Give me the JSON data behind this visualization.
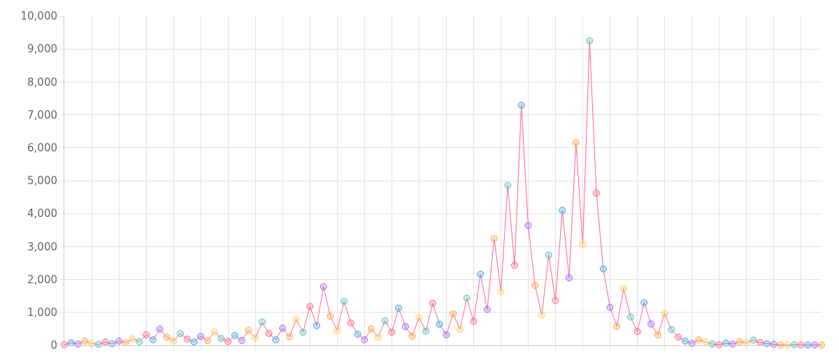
{
  "chart_data": {
    "type": "line",
    "categories": [
      null,
      null,
      null,
      null,
      null,
      null,
      null,
      null,
      null,
      null,
      null,
      null,
      null,
      null,
      null,
      null,
      null,
      null,
      null,
      null,
      null,
      null,
      null,
      null,
      null,
      null,
      null,
      null,
      null,
      null,
      null,
      null,
      null,
      null,
      null,
      null,
      null,
      null,
      null,
      null,
      null,
      null,
      null,
      null,
      null,
      null,
      null,
      null,
      null,
      null,
      null,
      null,
      null,
      null,
      null,
      null,
      null,
      null,
      null,
      null,
      null,
      null,
      null,
      null,
      null,
      null,
      null,
      null,
      null,
      null,
      null,
      null,
      null,
      null,
      null,
      null,
      null,
      null,
      null,
      null,
      null,
      null,
      null,
      null,
      null,
      null,
      null,
      null,
      null,
      null,
      null,
      null,
      null,
      null,
      null,
      null,
      null,
      null,
      null,
      null,
      null,
      null,
      null,
      null,
      null,
      null,
      null,
      null,
      null,
      null,
      null,
      null
    ],
    "series": [
      {
        "color": "#ff6384",
        "values": [
          20,
          80,
          40,
          130,
          60,
          30,
          100,
          50,
          130,
          80,
          200,
          110,
          320,
          170,
          490,
          250,
          130,
          360,
          190,
          100,
          270,
          150,
          410,
          210,
          120,
          300,
          150,
          460,
          230,
          710,
          360,
          170,
          520,
          260,
          790,
          400,
          1180,
          600,
          1780,
          880,
          450,
          1340,
          680,
          340,
          170,
          500,
          250,
          750,
          400,
          1130,
          570,
          280,
          840,
          430,
          1280,
          640,
          320,
          960,
          480,
          1430,
          730,
          2160,
          1090,
          3240,
          1630,
          4860,
          2430,
          7290,
          3640,
          1820,
          920,
          2740,
          1360,
          4100,
          2050,
          6150,
          3070,
          9250,
          4620,
          2320,
          1150,
          580,
          1720,
          860,
          420,
          1300,
          650,
          320,
          970,
          480,
          250,
          130,
          60,
          170,
          100,
          40,
          20,
          70,
          40,
          110,
          80,
          160,
          90,
          50,
          30,
          10,
          10,
          20,
          10,
          10,
          10,
          10
        ],
        "colors": [
          "#ff6384",
          "#36a2eb",
          "#9966ff",
          "#ff9f40",
          "#ffcd56",
          "#4bc0c0",
          "#ff6384",
          "#36a2eb",
          "#9966ff",
          "#ff9f40",
          "#ffcd56",
          "#4bc0c0",
          "#ff6384",
          "#36a2eb",
          "#9966ff",
          "#ff9f40",
          "#ffcd56",
          "#4bc0c0",
          "#ff6384",
          "#36a2eb",
          "#9966ff",
          "#ff9f40",
          "#ffcd56",
          "#4bc0c0",
          "#ff6384",
          "#36a2eb",
          "#9966ff",
          "#ff9f40",
          "#ffcd56",
          "#4bc0c0",
          "#ff6384",
          "#36a2eb",
          "#9966ff",
          "#ff9f40",
          "#ffcd56",
          "#4bc0c0",
          "#ff6384",
          "#36a2eb",
          "#9966ff",
          "#ff9f40",
          "#ffcd56",
          "#4bc0c0",
          "#ff6384",
          "#36a2eb",
          "#9966ff",
          "#ff9f40",
          "#ffcd56",
          "#4bc0c0",
          "#ff6384",
          "#36a2eb",
          "#9966ff",
          "#ff9f40",
          "#ffcd56",
          "#4bc0c0",
          "#ff6384",
          "#36a2eb",
          "#9966ff",
          "#ff9f40",
          "#ffcd56",
          "#4bc0c0",
          "#ff6384",
          "#36a2eb",
          "#9966ff",
          "#ff9f40",
          "#ffcd56",
          "#4bc0c0",
          "#ff6384",
          "#36a2eb",
          "#9966ff",
          "#ff9f40",
          "#ffcd56",
          "#4bc0c0",
          "#ff6384",
          "#36a2eb",
          "#9966ff",
          "#ff9f40",
          "#ffcd56",
          "#4bc0c0",
          "#ff6384",
          "#36a2eb",
          "#9966ff",
          "#ff9f40",
          "#ffcd56",
          "#4bc0c0",
          "#ff6384",
          "#36a2eb",
          "#9966ff",
          "#ff9f40",
          "#ffcd56",
          "#4bc0c0",
          "#ff6384",
          "#36a2eb",
          "#9966ff",
          "#ff9f40",
          "#ffcd56",
          "#4bc0c0",
          "#ff6384",
          "#36a2eb",
          "#9966ff",
          "#ff9f40",
          "#ffcd56",
          "#4bc0c0",
          "#ff6384",
          "#36a2eb",
          "#9966ff",
          "#ff9f40",
          "#ffcd56",
          "#4bc0c0",
          "#ff6384",
          "#36a2eb",
          "#9966ff",
          "#ff9f40"
        ]
      }
    ],
    "ylim": [
      0,
      10000
    ],
    "yticks": [
      0,
      {
        "value": 1000,
        "label": "1,000"
      },
      {
        "value": 2000,
        "label": "2,000"
      },
      {
        "value": 3000,
        "label": "3,000"
      },
      {
        "value": 4000,
        "label": "4,000"
      },
      {
        "value": 5000,
        "label": "5,000"
      },
      {
        "value": 6000,
        "label": "6,000"
      },
      {
        "value": 7000,
        "label": "7,000"
      },
      {
        "value": 8000,
        "label": "8,000"
      },
      {
        "value": 9000,
        "label": "9,000"
      },
      {
        "value": 10000,
        "label": "10,000"
      }
    ],
    "tick_labels": "y",
    "grid": true,
    "marker": "circle",
    "line_style": "solid"
  }
}
